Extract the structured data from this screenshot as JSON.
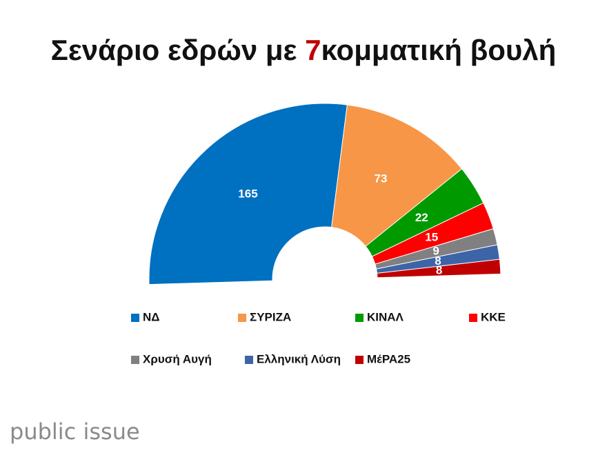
{
  "chart_data": {
    "type": "half-donut",
    "title": [
      "Σενάριο εδρών με ",
      "7",
      "κομματική βουλή"
    ],
    "categories": [
      "ΝΔ",
      "ΣΥΡΙΖΑ",
      "ΚΙΝΑΛ",
      "ΚΚΕ",
      "Χρυσή Αυγή",
      "Ελληνική Λύση",
      "ΜέΡΑ25"
    ],
    "values": [
      165,
      73,
      22,
      15,
      9,
      8,
      8
    ],
    "colors": [
      "#0070c0",
      "#f79646",
      "#009a00",
      "#ff0000",
      "#808080",
      "#3e64a8",
      "#c00000"
    ],
    "source": "public issue"
  }
}
